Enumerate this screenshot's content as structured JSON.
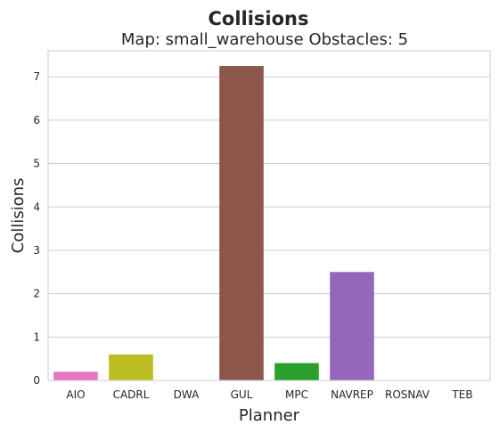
{
  "chart_data": {
    "type": "bar",
    "title": "Collisions",
    "subtitle": "Map: small_warehouse Obstacles: 5",
    "xlabel": "Planner",
    "ylabel": "Collisions",
    "categories": [
      "AIO",
      "CADRL",
      "DWA",
      "GUL",
      "MPC",
      "NAVREP",
      "ROSNAV",
      "TEB"
    ],
    "values": [
      0.2,
      0.6,
      0,
      7.25,
      0.4,
      2.5,
      0,
      0
    ],
    "colors": [
      "#e377c2",
      "#bcbd22",
      "#7f7f7f",
      "#8c564b",
      "#2ca02c",
      "#9467bd",
      "#17becf",
      "#1f77b4"
    ],
    "ylim": [
      0,
      7.6
    ],
    "yticks": [
      0,
      1,
      2,
      3,
      4,
      5,
      6,
      7
    ],
    "grid": true,
    "grid_axis": "y",
    "grid_color": "#cccccc",
    "style": "seaborn-whitegrid"
  }
}
